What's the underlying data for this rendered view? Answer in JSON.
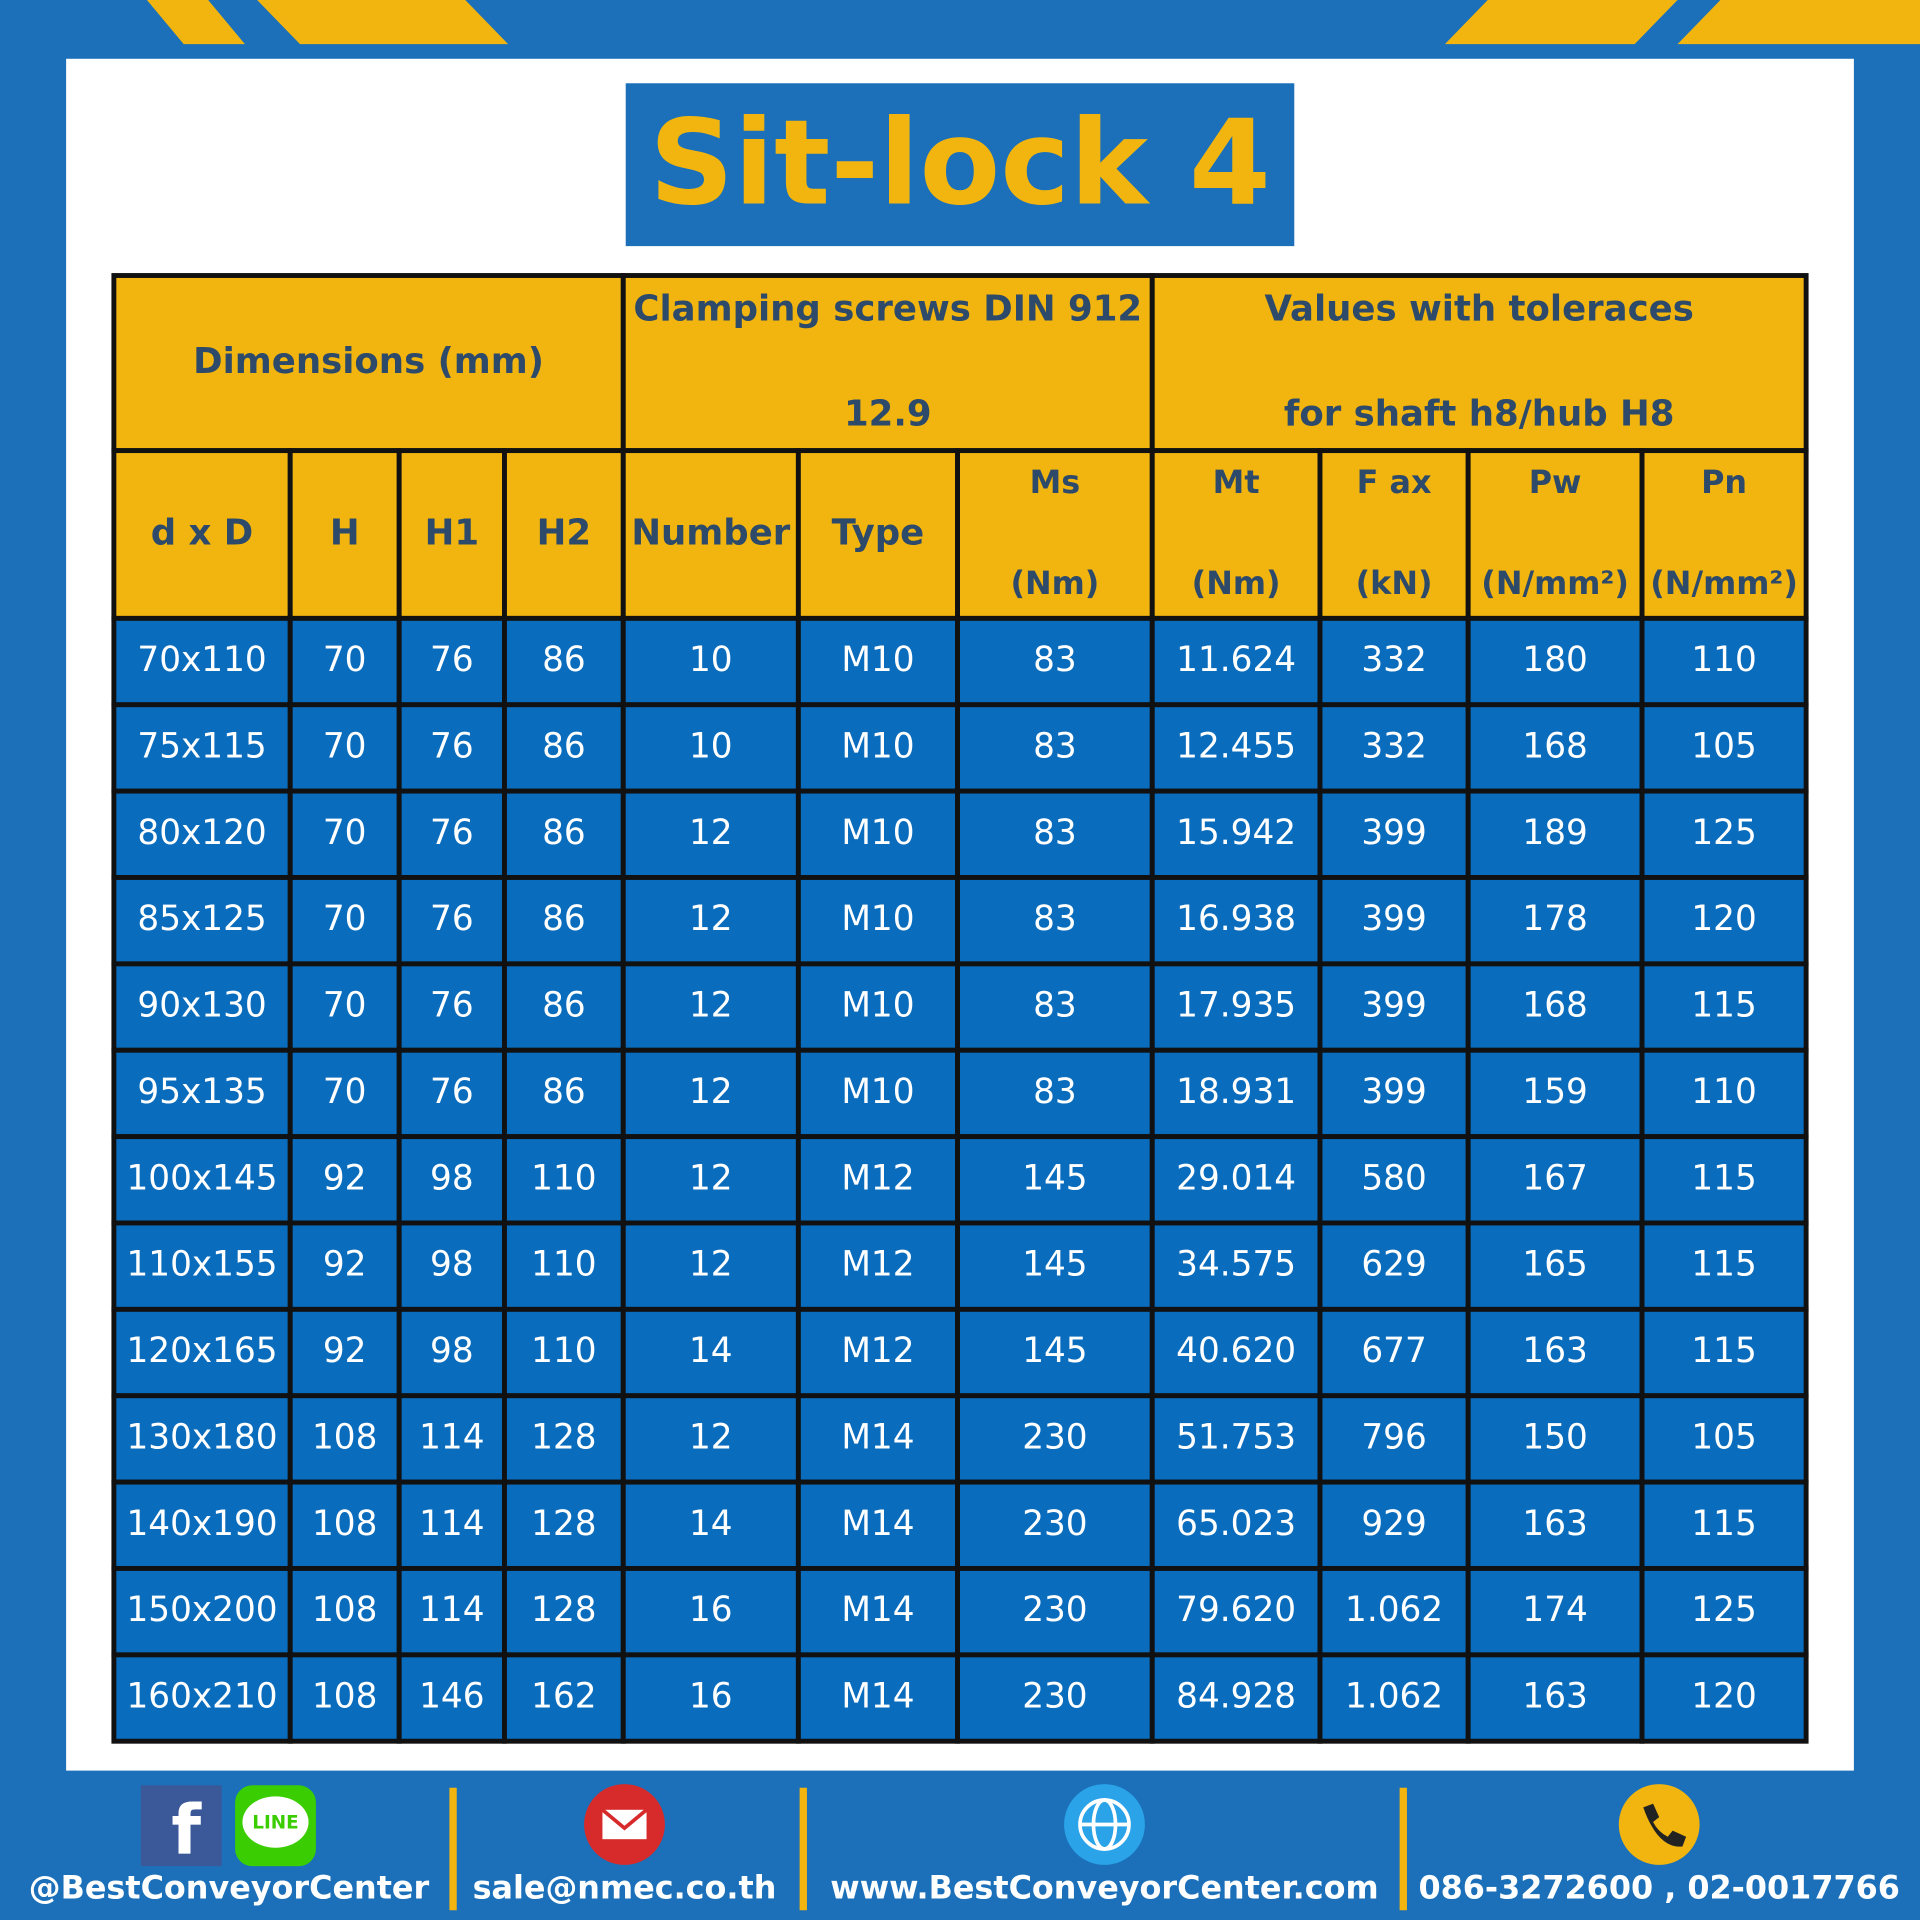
{
  "title": "Sit-lock 4",
  "table": {
    "groups": [
      {
        "lines": [
          "Dimensions (mm)"
        ],
        "from": 0,
        "to": 3
      },
      {
        "lines": [
          "Clamping screws DIN 912",
          "12.9"
        ],
        "from": 4,
        "to": 6
      },
      {
        "lines": [
          "Values with toleraces",
          "for shaft h8/hub H8"
        ],
        "from": 7,
        "to": 10
      }
    ],
    "columns": [
      [
        "d x D"
      ],
      [
        "H"
      ],
      [
        "H1"
      ],
      [
        "H2"
      ],
      [
        "Number"
      ],
      [
        "Type"
      ],
      [
        "Ms",
        "(Nm)"
      ],
      [
        "Mt",
        "(Nm)"
      ],
      [
        "F ax",
        "(kN)"
      ],
      [
        "Pw",
        "(N/mm²)"
      ],
      [
        "Pn",
        "(N/mm²)"
      ]
    ],
    "rows": [
      [
        "70x110",
        "70",
        "76",
        "86",
        "10",
        "M10",
        "83",
        "11.624",
        "332",
        "180",
        "110"
      ],
      [
        "75x115",
        "70",
        "76",
        "86",
        "10",
        "M10",
        "83",
        "12.455",
        "332",
        "168",
        "105"
      ],
      [
        "80x120",
        "70",
        "76",
        "86",
        "12",
        "M10",
        "83",
        "15.942",
        "399",
        "189",
        "125"
      ],
      [
        "85x125",
        "70",
        "76",
        "86",
        "12",
        "M10",
        "83",
        "16.938",
        "399",
        "178",
        "120"
      ],
      [
        "90x130",
        "70",
        "76",
        "86",
        "12",
        "M10",
        "83",
        "17.935",
        "399",
        "168",
        "115"
      ],
      [
        "95x135",
        "70",
        "76",
        "86",
        "12",
        "M10",
        "83",
        "18.931",
        "399",
        "159",
        "110"
      ],
      [
        "100x145",
        "92",
        "98",
        "110",
        "12",
        "M12",
        "145",
        "29.014",
        "580",
        "167",
        "115"
      ],
      [
        "110x155",
        "92",
        "98",
        "110",
        "12",
        "M12",
        "145",
        "34.575",
        "629",
        "165",
        "115"
      ],
      [
        "120x165",
        "92",
        "98",
        "110",
        "14",
        "M12",
        "145",
        "40.620",
        "677",
        "163",
        "115"
      ],
      [
        "130x180",
        "108",
        "114",
        "128",
        "12",
        "M14",
        "230",
        "51.753",
        "796",
        "150",
        "105"
      ],
      [
        "140x190",
        "108",
        "114",
        "128",
        "14",
        "M14",
        "230",
        "65.023",
        "929",
        "163",
        "115"
      ],
      [
        "150x200",
        "108",
        "114",
        "128",
        "16",
        "M14",
        "230",
        "79.620",
        "1.062",
        "174",
        "125"
      ],
      [
        "160x210",
        "108",
        "146",
        "162",
        "16",
        "M14",
        "230",
        "84.928",
        "1.062",
        "163",
        "120"
      ]
    ]
  },
  "footer": {
    "icons": {
      "facebook": "f",
      "line": "LINE"
    },
    "social": "@BestConveyorCenter",
    "email": "sale@nmec.co.th",
    "website": "www.BestConveyorCenter.com",
    "phone": "086-3272600 , 02-0017766"
  }
}
